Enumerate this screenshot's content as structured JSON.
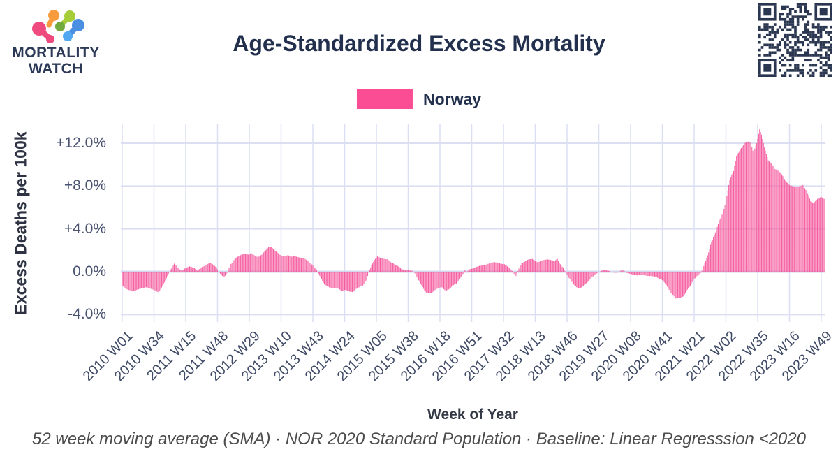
{
  "header": {
    "logo_line1": "MORTALITY",
    "logo_line2": "WATCH",
    "title": "Age-Standardized Excess Mortality"
  },
  "legend": {
    "label": "Norway",
    "color": "#fb4d93"
  },
  "footer": {
    "caption": "52 week moving average (SMA) · NOR 2020 Standard Population · Baseline: Linear Regresssion <2020"
  },
  "colors": {
    "bar": "#f5579c",
    "grid": "#dcdff2",
    "zero_line": "#d3d7ee",
    "title_text": "#22304e",
    "tick_text": "#3f4a66",
    "qr": "#2b3750"
  },
  "chart_data": {
    "type": "bar",
    "title": "Age-Standardized Excess Mortality",
    "series_name": "Norway",
    "xlabel": "Week of Year",
    "ylabel": "Excess Deaths per 100k",
    "ylim": [
      -4.7,
      13.8
    ],
    "grid": true,
    "legend_position": "top",
    "yticks": [
      {
        "label": "+12.0%",
        "value": 12
      },
      {
        "label": "+8.0%",
        "value": 8
      },
      {
        "label": "+4.0%",
        "value": 4
      },
      {
        "label": "0.0%",
        "value": 0
      },
      {
        "label": "-4.0%",
        "value": -4
      }
    ],
    "xticks": [
      {
        "label": "2010 W01",
        "week": 0
      },
      {
        "label": "2010 W34",
        "week": 33
      },
      {
        "label": "2011 W15",
        "week": 66
      },
      {
        "label": "2011 W48",
        "week": 99
      },
      {
        "label": "2012 W29",
        "week": 132
      },
      {
        "label": "2013 W10",
        "week": 165
      },
      {
        "label": "2013 W43",
        "week": 198
      },
      {
        "label": "2014 W24",
        "week": 231
      },
      {
        "label": "2015 W05",
        "week": 264
      },
      {
        "label": "2015 W38",
        "week": 297
      },
      {
        "label": "2016 W18",
        "week": 330
      },
      {
        "label": "2016 W51",
        "week": 363
      },
      {
        "label": "2017 W32",
        "week": 396
      },
      {
        "label": "2018 W13",
        "week": 429
      },
      {
        "label": "2018 W46",
        "week": 462
      },
      {
        "label": "2019 W27",
        "week": 495
      },
      {
        "label": "2020 W08",
        "week": 528
      },
      {
        "label": "2020 W41",
        "week": 561
      },
      {
        "label": "2021 W21",
        "week": 594
      },
      {
        "label": "2022 W02",
        "week": 627
      },
      {
        "label": "2022 W35",
        "week": 660
      },
      {
        "label": "2023 W16",
        "week": 693
      },
      {
        "label": "2023 W49",
        "week": 726
      }
    ],
    "total_weeks": 729,
    "anchors_week_pct": [
      [
        0,
        -1.3
      ],
      [
        4,
        -1.6
      ],
      [
        11,
        -1.85
      ],
      [
        18,
        -1.6
      ],
      [
        25,
        -1.45
      ],
      [
        33,
        -1.7
      ],
      [
        38,
        -1.95
      ],
      [
        44,
        -1.0
      ],
      [
        49,
        0
      ],
      [
        54,
        0.75
      ],
      [
        59,
        0.3
      ],
      [
        62,
        0.05
      ],
      [
        65,
        0.3
      ],
      [
        70,
        0.5
      ],
      [
        75,
        0.35
      ],
      [
        78,
        0.1
      ],
      [
        82,
        0.4
      ],
      [
        87,
        0.6
      ],
      [
        91,
        0.85
      ],
      [
        94,
        0.7
      ],
      [
        98,
        0.4
      ],
      [
        100,
        0
      ],
      [
        104,
        -0.4
      ],
      [
        106,
        -0.5
      ],
      [
        109,
        -0.1
      ],
      [
        112,
        0.6
      ],
      [
        117,
        1.2
      ],
      [
        120,
        1.4
      ],
      [
        123,
        1.55
      ],
      [
        127,
        1.7
      ],
      [
        131,
        1.6
      ],
      [
        134,
        1.75
      ],
      [
        138,
        1.5
      ],
      [
        141,
        1.35
      ],
      [
        145,
        1.6
      ],
      [
        149,
        2.0
      ],
      [
        152,
        2.3
      ],
      [
        155,
        2.35
      ],
      [
        157,
        2.1
      ],
      [
        161,
        1.8
      ],
      [
        165,
        1.5
      ],
      [
        168,
        1.4
      ],
      [
        172,
        1.55
      ],
      [
        176,
        1.4
      ],
      [
        179,
        1.45
      ],
      [
        183,
        1.35
      ],
      [
        186,
        1.3
      ],
      [
        190,
        1.2
      ],
      [
        194,
        0.9
      ],
      [
        198,
        0.6
      ],
      [
        202,
        0.2
      ],
      [
        204,
        -0.2
      ],
      [
        207,
        -0.7
      ],
      [
        210,
        -1.2
      ],
      [
        214,
        -1.4
      ],
      [
        218,
        -1.6
      ],
      [
        221,
        -1.5
      ],
      [
        225,
        -1.6
      ],
      [
        228,
        -1.8
      ],
      [
        232,
        -1.7
      ],
      [
        236,
        -1.85
      ],
      [
        239,
        -1.9
      ],
      [
        243,
        -1.6
      ],
      [
        247,
        -1.4
      ],
      [
        250,
        -1.3
      ],
      [
        254,
        -0.8
      ],
      [
        256,
        0
      ],
      [
        259,
        0.6
      ],
      [
        262,
        1.1
      ],
      [
        265,
        1.45
      ],
      [
        268,
        1.3
      ],
      [
        272,
        1.2
      ],
      [
        276,
        1.15
      ],
      [
        279,
        0.9
      ],
      [
        283,
        0.7
      ],
      [
        287,
        0.5
      ],
      [
        290,
        0.25
      ],
      [
        294,
        0.15
      ],
      [
        301,
        0.1
      ],
      [
        303,
        0
      ],
      [
        306,
        -0.5
      ],
      [
        310,
        -1.1
      ],
      [
        313,
        -1.6
      ],
      [
        316,
        -2.0
      ],
      [
        321,
        -2.0
      ],
      [
        325,
        -1.7
      ],
      [
        329,
        -1.5
      ],
      [
        332,
        -1.45
      ],
      [
        336,
        -1.8
      ],
      [
        340,
        -1.6
      ],
      [
        343,
        -1.3
      ],
      [
        347,
        -1.1
      ],
      [
        350,
        -0.7
      ],
      [
        354,
        -0.2
      ],
      [
        356,
        0.15
      ],
      [
        358,
        0
      ],
      [
        360,
        0.2
      ],
      [
        364,
        0.3
      ],
      [
        368,
        0.45
      ],
      [
        371,
        0.55
      ],
      [
        375,
        0.6
      ],
      [
        379,
        0.7
      ],
      [
        382,
        0.8
      ],
      [
        386,
        0.9
      ],
      [
        390,
        0.85
      ],
      [
        393,
        0.75
      ],
      [
        397,
        0.7
      ],
      [
        400,
        0.5
      ],
      [
        404,
        0.2
      ],
      [
        407,
        -0.2
      ],
      [
        409,
        -0.4
      ],
      [
        412,
        0.3
      ],
      [
        415,
        0.8
      ],
      [
        419,
        1.0
      ],
      [
        422,
        1.15
      ],
      [
        426,
        1.2
      ],
      [
        429,
        1.0
      ],
      [
        432,
        0.85
      ],
      [
        434,
        1.0
      ],
      [
        438,
        1.1
      ],
      [
        442,
        1.15
      ],
      [
        445,
        1.1
      ],
      [
        449,
        1.0
      ],
      [
        452,
        1.2
      ],
      [
        454,
        0.8
      ],
      [
        456,
        0.6
      ],
      [
        459,
        0.2
      ],
      [
        462,
        -0.3
      ],
      [
        465,
        -0.7
      ],
      [
        469,
        -1.2
      ],
      [
        472,
        -1.45
      ],
      [
        476,
        -1.55
      ],
      [
        479,
        -1.3
      ],
      [
        483,
        -1.0
      ],
      [
        487,
        -0.6
      ],
      [
        490,
        -0.35
      ],
      [
        494,
        -0.1
      ],
      [
        498,
        0.1
      ],
      [
        501,
        0.15
      ],
      [
        505,
        0.1
      ],
      [
        509,
        -0.05
      ],
      [
        512,
        -0.1
      ],
      [
        516,
        -0.05
      ],
      [
        519,
        0.2
      ],
      [
        521,
        0.1
      ],
      [
        524,
        -0.1
      ],
      [
        528,
        -0.2
      ],
      [
        532,
        -0.3
      ],
      [
        535,
        -0.35
      ],
      [
        539,
        -0.3
      ],
      [
        543,
        -0.35
      ],
      [
        546,
        -0.4
      ],
      [
        550,
        -0.4
      ],
      [
        553,
        -0.45
      ],
      [
        557,
        -0.6
      ],
      [
        561,
        -0.8
      ],
      [
        564,
        -1.1
      ],
      [
        568,
        -1.7
      ],
      [
        572,
        -2.2
      ],
      [
        575,
        -2.5
      ],
      [
        579,
        -2.45
      ],
      [
        583,
        -2.3
      ],
      [
        586,
        -1.8
      ],
      [
        590,
        -1.3
      ],
      [
        593,
        -0.8
      ],
      [
        597,
        -0.4
      ],
      [
        601,
        -0.1
      ],
      [
        603,
        0.3
      ],
      [
        606,
        1.0
      ],
      [
        609,
        1.8
      ],
      [
        611,
        2.5
      ],
      [
        614,
        3.2
      ],
      [
        617,
        3.9
      ],
      [
        620,
        4.8
      ],
      [
        624,
        5.5
      ],
      [
        627,
        6.6
      ],
      [
        631,
        8.6
      ],
      [
        635,
        9.4
      ],
      [
        638,
        10.8
      ],
      [
        642,
        11.4
      ],
      [
        646,
        12.0
      ],
      [
        649,
        12.1
      ],
      [
        651,
        12.2
      ],
      [
        653,
        12.0
      ],
      [
        655,
        11.3
      ],
      [
        657,
        11.5
      ],
      [
        659,
        12.0
      ],
      [
        662,
        13.3
      ],
      [
        664,
        12.8
      ],
      [
        667,
        11.6
      ],
      [
        671,
        10.4
      ],
      [
        675,
        10.0
      ],
      [
        678,
        9.6
      ],
      [
        682,
        9.4
      ],
      [
        685,
        9.1
      ],
      [
        689,
        8.5
      ],
      [
        693,
        8.1
      ],
      [
        696,
        8.0
      ],
      [
        700,
        7.9
      ],
      [
        704,
        8.0
      ],
      [
        707,
        8.1
      ],
      [
        711,
        7.5
      ],
      [
        715,
        6.6
      ],
      [
        718,
        6.4
      ],
      [
        722,
        6.8
      ],
      [
        726,
        7.0
      ],
      [
        729,
        6.8
      ]
    ]
  }
}
